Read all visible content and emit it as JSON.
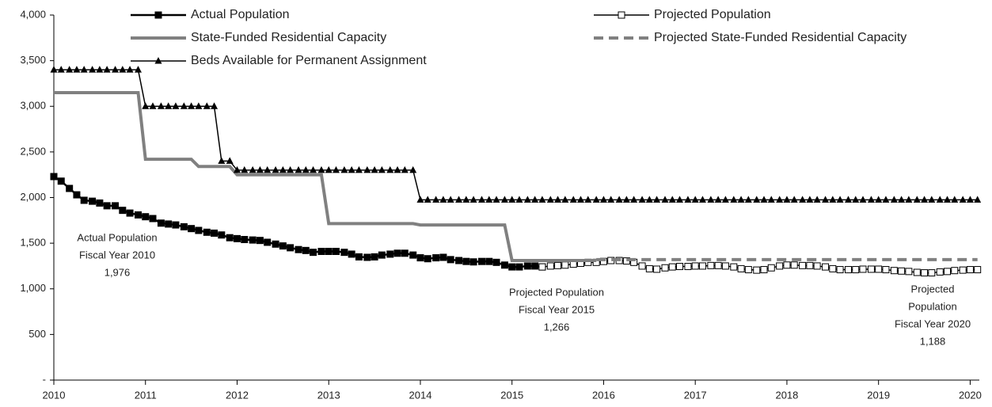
{
  "chart_data": {
    "type": "line",
    "legend": "top",
    "x": [
      2010,
      2010.08,
      2010.17,
      2010.25,
      2010.33,
      2010.42,
      2010.5,
      2010.58,
      2010.67,
      2010.75,
      2010.83,
      2010.92,
      2011,
      2011.08,
      2011.17,
      2011.25,
      2011.33,
      2011.42,
      2011.5,
      2011.58,
      2011.67,
      2011.75,
      2011.83,
      2011.92,
      2012,
      2012.08,
      2012.17,
      2012.25,
      2012.33,
      2012.42,
      2012.5,
      2012.58,
      2012.67,
      2012.75,
      2012.83,
      2012.92,
      2013,
      2013.08,
      2013.17,
      2013.25,
      2013.33,
      2013.42,
      2013.5,
      2013.58,
      2013.67,
      2013.75,
      2013.83,
      2013.92,
      2014,
      2014.08,
      2014.17,
      2014.25,
      2014.33,
      2014.42,
      2014.5,
      2014.58,
      2014.67,
      2014.75,
      2014.83,
      2014.92,
      2015,
      2015.08,
      2015.17,
      2015.25,
      2015.33,
      2015.42,
      2015.5,
      2015.58,
      2015.67,
      2015.75,
      2015.83,
      2015.92,
      2016,
      2016.08,
      2016.17,
      2016.25,
      2016.33,
      2016.42,
      2016.5,
      2016.58,
      2016.67,
      2016.75,
      2016.83,
      2016.92,
      2017,
      2017.08,
      2017.17,
      2017.25,
      2017.33,
      2017.42,
      2017.5,
      2017.58,
      2017.67,
      2017.75,
      2017.83,
      2017.92,
      2018,
      2018.08,
      2018.17,
      2018.25,
      2018.33,
      2018.42,
      2018.5,
      2018.58,
      2018.67,
      2018.75,
      2018.83,
      2018.92,
      2019,
      2019.08,
      2019.17,
      2019.25,
      2019.33,
      2019.42,
      2019.5,
      2019.58,
      2019.67,
      2019.75,
      2019.83,
      2019.92,
      2020,
      2020.08
    ],
    "series": [
      {
        "name": "Actual Population",
        "color": "#000000",
        "marker": "square",
        "width": 2.5,
        "values": [
          2230,
          2180,
          2100,
          2030,
          1970,
          1960,
          1940,
          1910,
          1910,
          1860,
          1830,
          1810,
          1790,
          1770,
          1720,
          1710,
          1700,
          1680,
          1660,
          1640,
          1620,
          1610,
          1590,
          1560,
          1550,
          1540,
          1535,
          1530,
          1510,
          1490,
          1470,
          1450,
          1430,
          1420,
          1400,
          1410,
          1410,
          1410,
          1400,
          1380,
          1350,
          1345,
          1350,
          1370,
          1380,
          1390,
          1390,
          1370,
          1340,
          1330,
          1340,
          1345,
          1320,
          1310,
          1300,
          1295,
          1300,
          1300,
          1290,
          1260,
          1240,
          1240,
          1250,
          1250,
          1240,
          null,
          null,
          null,
          null,
          null,
          null,
          null,
          null,
          null,
          null,
          null,
          null,
          null,
          null,
          null,
          null,
          null,
          null,
          null,
          null,
          null,
          null,
          null,
          null,
          null,
          null,
          null,
          null,
          null,
          null,
          null,
          null,
          null,
          null,
          null,
          null,
          null,
          null,
          null,
          null,
          null,
          null,
          null,
          null,
          null,
          null,
          null,
          null,
          null,
          null,
          null,
          null,
          null,
          null,
          null,
          null,
          null
        ]
      },
      {
        "name": "Projected Population",
        "color": "#000000",
        "marker": "open-square",
        "width": 1.5,
        "values": [
          null,
          null,
          null,
          null,
          null,
          null,
          null,
          null,
          null,
          null,
          null,
          null,
          null,
          null,
          null,
          null,
          null,
          null,
          null,
          null,
          null,
          null,
          null,
          null,
          null,
          null,
          null,
          null,
          null,
          null,
          null,
          null,
          null,
          null,
          null,
          null,
          null,
          null,
          null,
          null,
          null,
          null,
          null,
          null,
          null,
          null,
          null,
          null,
          null,
          null,
          null,
          null,
          null,
          null,
          null,
          null,
          null,
          null,
          null,
          null,
          null,
          null,
          null,
          null,
          1240,
          1250,
          1255,
          1260,
          1270,
          1280,
          1290,
          1290,
          1300,
          1310,
          1310,
          1305,
          1290,
          1250,
          1220,
          1215,
          1230,
          1240,
          1245,
          1245,
          1250,
          1250,
          1255,
          1255,
          1250,
          1240,
          1220,
          1210,
          1205,
          1210,
          1230,
          1250,
          1260,
          1260,
          1255,
          1255,
          1250,
          1240,
          1220,
          1210,
          1210,
          1210,
          1215,
          1215,
          1215,
          1210,
          1200,
          1195,
          1190,
          1180,
          1175,
          1175,
          1185,
          1190,
          1200,
          1205,
          1210,
          1210
        ]
      },
      {
        "name": "State-Funded Residential Capacity",
        "color": "#808080",
        "width": 4,
        "values": [
          3150,
          3150,
          3150,
          3150,
          3150,
          3150,
          3150,
          3150,
          3150,
          3150,
          3150,
          3150,
          2420,
          2420,
          2420,
          2420,
          2420,
          2420,
          2420,
          2340,
          2340,
          2340,
          2340,
          2340,
          2250,
          2250,
          2250,
          2250,
          2250,
          2250,
          2250,
          2250,
          2250,
          2250,
          2250,
          2250,
          1715,
          1715,
          1715,
          1715,
          1715,
          1715,
          1715,
          1715,
          1715,
          1715,
          1715,
          1715,
          1700,
          1700,
          1700,
          1700,
          1700,
          1700,
          1700,
          1700,
          1700,
          1700,
          1700,
          1700,
          1310,
          1310,
          1310,
          1310,
          1310,
          1310,
          1310,
          1310,
          1310,
          1310,
          1310,
          1310,
          null,
          null,
          null,
          null,
          null,
          null,
          null,
          null,
          null,
          null,
          null,
          null,
          null,
          null,
          null,
          null,
          null,
          null,
          null,
          null,
          null,
          null,
          null,
          null,
          null,
          null,
          null,
          null,
          null,
          null,
          null,
          null,
          null,
          null,
          null,
          null,
          null,
          null,
          null,
          null,
          null,
          null,
          null,
          null,
          null,
          null,
          null,
          null,
          null,
          null
        ]
      },
      {
        "name": "Projected State-Funded Residential Capacity",
        "color": "#808080",
        "width": 4,
        "dash": true,
        "values": [
          null,
          null,
          null,
          null,
          null,
          null,
          null,
          null,
          null,
          null,
          null,
          null,
          null,
          null,
          null,
          null,
          null,
          null,
          null,
          null,
          null,
          null,
          null,
          null,
          null,
          null,
          null,
          null,
          null,
          null,
          null,
          null,
          null,
          null,
          null,
          null,
          null,
          null,
          null,
          null,
          null,
          null,
          null,
          null,
          null,
          null,
          null,
          null,
          null,
          null,
          null,
          null,
          null,
          null,
          null,
          null,
          null,
          null,
          null,
          null,
          null,
          null,
          null,
          null,
          null,
          null,
          null,
          null,
          null,
          null,
          null,
          1320,
          1320,
          1320,
          1320,
          1320,
          1320,
          1320,
          1320,
          1320,
          1320,
          1320,
          1320,
          1320,
          1320,
          1320,
          1320,
          1320,
          1320,
          1320,
          1320,
          1320,
          1320,
          1320,
          1320,
          1320,
          1320,
          1320,
          1320,
          1320,
          1320,
          1320,
          1320,
          1320,
          1320,
          1320,
          1320,
          1320,
          1320,
          1320,
          1320,
          1320,
          1320,
          1320,
          1320,
          1320,
          1320,
          1320,
          1320,
          1320,
          1320,
          1320
        ]
      },
      {
        "name": "Beds Available for Permanent Assignment",
        "color": "#000000",
        "marker": "triangle",
        "width": 1.5,
        "values": [
          3400,
          3400,
          3400,
          3400,
          3400,
          3400,
          3400,
          3400,
          3400,
          3400,
          3400,
          3400,
          3000,
          3000,
          3000,
          3000,
          3000,
          3000,
          3000,
          3000,
          3000,
          3000,
          2400,
          2400,
          2300,
          2300,
          2300,
          2300,
          2300,
          2300,
          2300,
          2300,
          2300,
          2300,
          2300,
          2300,
          2300,
          2300,
          2300,
          2300,
          2300,
          2300,
          2300,
          2300,
          2300,
          2300,
          2300,
          2300,
          1975,
          1975,
          1975,
          1975,
          1975,
          1975,
          1975,
          1975,
          1975,
          1975,
          1975,
          1975,
          1975,
          1975,
          1975,
          1975,
          1975,
          1975,
          1975,
          1975,
          1975,
          1975,
          1975,
          1975,
          1975,
          1975,
          1975,
          1975,
          1975,
          1975,
          1975,
          1975,
          1975,
          1975,
          1975,
          1975,
          1975,
          1975,
          1975,
          1975,
          1975,
          1975,
          1975,
          1975,
          1975,
          1975,
          1975,
          1975,
          1975,
          1975,
          1975,
          1975,
          1975,
          1975,
          1975,
          1975,
          1975,
          1975,
          1975,
          1975,
          1975,
          1975,
          1975,
          1975,
          1975,
          1975,
          1975,
          1975,
          1975,
          1975,
          1975,
          1975,
          1975,
          1975
        ]
      }
    ],
    "xlim": [
      2010,
      2020.1
    ],
    "xticks": [
      2010,
      2011,
      2012,
      2013,
      2014,
      2015,
      2016,
      2017,
      2018,
      2019,
      2020
    ],
    "ylim": [
      0,
      4000
    ],
    "yticks": [
      {
        "value": 0,
        "label": "-"
      },
      500,
      {
        "value": 1000,
        "label": "1,000"
      },
      {
        "value": 1500,
        "label": "1,500"
      },
      {
        "value": 2000,
        "label": "2,000"
      },
      {
        "value": 2500,
        "label": "2,500"
      },
      {
        "value": 3000,
        "label": "3,000"
      },
      {
        "value": 3500,
        "label": "3,500"
      },
      {
        "value": 4000,
        "label": "4,000"
      }
    ],
    "annotations": [
      {
        "lines": [
          "Actual Population",
          "Fiscal Year 2010",
          "1,976"
        ]
      },
      {
        "lines": [
          "Projected Population",
          "Fiscal Year 2015",
          "1,266"
        ]
      },
      {
        "lines": [
          "Projected",
          "Population",
          "Fiscal Year 2020",
          "1,188"
        ]
      }
    ]
  }
}
